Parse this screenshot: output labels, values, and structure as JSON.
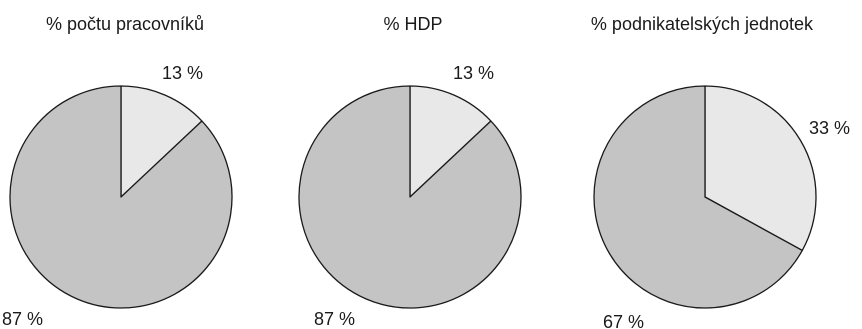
{
  "chart_data": [
    {
      "type": "pie",
      "title": "% počtu pracovníků",
      "slices": [
        {
          "value": 13,
          "label": "13 %",
          "color": "#e8e8e8"
        },
        {
          "value": 87,
          "label": "87 %",
          "color": "#c4c4c4"
        }
      ]
    },
    {
      "type": "pie",
      "title": "% HDP",
      "slices": [
        {
          "value": 13,
          "label": "13 %",
          "color": "#e8e8e8"
        },
        {
          "value": 87,
          "label": "87 %",
          "color": "#c4c4c4"
        }
      ]
    },
    {
      "type": "pie",
      "title": "% podnikatelských jednotek",
      "slices": [
        {
          "value": 33,
          "label": "33 %",
          "color": "#e8e8e8"
        },
        {
          "value": 67,
          "label": "67 %",
          "color": "#c4c4c4"
        }
      ]
    }
  ]
}
